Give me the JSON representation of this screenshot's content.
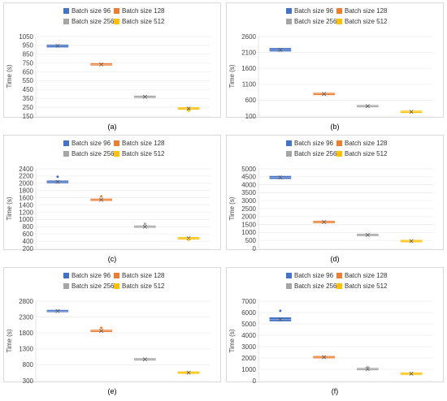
{
  "legend": {
    "colors": [
      "#4472c4",
      "#ed7d31",
      "#a5a5a5",
      "#ffc000"
    ]
  },
  "chart_data": [
    {
      "type": "box",
      "panel": "a",
      "caption": "(a)",
      "ylabel": "Time (s)",
      "ylim": [
        150,
        1050
      ],
      "yticks": [
        150,
        250,
        350,
        450,
        550,
        650,
        750,
        850,
        950,
        1050
      ],
      "legend": [
        "Batch size 96",
        "Batch size 128",
        "Batch size 256",
        "Batch size 512"
      ],
      "series": [
        {
          "name": "Batch size 96",
          "q1": 930,
          "q3": 955,
          "min": 925,
          "max": 960,
          "median": 945,
          "mean": 945,
          "outliers": []
        },
        {
          "name": "Batch size 128",
          "q1": 728,
          "q3": 742,
          "min": 725,
          "max": 745,
          "median": 735,
          "mean": 735,
          "outliers": []
        },
        {
          "name": "Batch size 256",
          "q1": 362,
          "q3": 374,
          "min": 360,
          "max": 377,
          "median": 368,
          "mean": 368,
          "outliers": []
        },
        {
          "name": "Batch size 512",
          "q1": 232,
          "q3": 240,
          "min": 230,
          "max": 243,
          "median": 235,
          "mean": 235,
          "outliers": [
            210
          ]
        }
      ]
    },
    {
      "type": "box",
      "panel": "b",
      "caption": "(b)",
      "ylabel": "Time (s)",
      "ylim": [
        100,
        2600
      ],
      "yticks": [
        100,
        600,
        1100,
        1600,
        2100,
        2600
      ],
      "legend": [
        "Batch size 96",
        "Batch size 128",
        "Batch size 256",
        "Batch size 512"
      ],
      "series": [
        {
          "name": "Batch size 96",
          "q1": 2140,
          "q3": 2230,
          "min": 2120,
          "max": 2250,
          "median": 2180,
          "mean": 2180,
          "outliers": []
        },
        {
          "name": "Batch size 128",
          "q1": 780,
          "q3": 810,
          "min": 770,
          "max": 820,
          "median": 795,
          "mean": 795,
          "outliers": []
        },
        {
          "name": "Batch size 256",
          "q1": 400,
          "q3": 425,
          "min": 395,
          "max": 430,
          "median": 412,
          "mean": 412,
          "outliers": []
        },
        {
          "name": "Batch size 512",
          "q1": 225,
          "q3": 245,
          "min": 220,
          "max": 250,
          "median": 235,
          "mean": 235,
          "outliers": []
        }
      ]
    },
    {
      "type": "box",
      "panel": "c",
      "caption": "(c)",
      "ylabel": "Time (s)",
      "ylim": [
        200,
        2400
      ],
      "yticks": [
        200,
        400,
        600,
        800,
        1000,
        1200,
        1400,
        1600,
        1800,
        2000,
        2200,
        2400
      ],
      "legend": [
        "Batch size 96",
        "Batch size 128",
        "Batch size 256",
        "Batch size 512"
      ],
      "series": [
        {
          "name": "Batch size 96",
          "q1": 2010,
          "q3": 2070,
          "min": 2000,
          "max": 2080,
          "median": 2040,
          "mean": 2040,
          "outliers": [
            2180
          ]
        },
        {
          "name": "Batch size 128",
          "q1": 1530,
          "q3": 1560,
          "min": 1520,
          "max": 1570,
          "median": 1545,
          "mean": 1545,
          "outliers": [
            1640
          ]
        },
        {
          "name": "Batch size 256",
          "q1": 790,
          "q3": 810,
          "min": 785,
          "max": 815,
          "median": 800,
          "mean": 800,
          "outliers": [
            880
          ]
        },
        {
          "name": "Batch size 512",
          "q1": 470,
          "q3": 490,
          "min": 465,
          "max": 495,
          "median": 480,
          "mean": 480,
          "outliers": [
            440
          ]
        }
      ]
    },
    {
      "type": "box",
      "panel": "d",
      "caption": "(d)",
      "ylabel": "Time (s)",
      "ylim": [
        0,
        5000
      ],
      "yticks": [
        0,
        500,
        1000,
        1500,
        2000,
        2500,
        3000,
        3500,
        4000,
        4500,
        5000
      ],
      "legend": [
        "Batch size 96",
        "Batch size 128",
        "Batch size 256",
        "Batch size 512"
      ],
      "series": [
        {
          "name": "Batch size 96",
          "q1": 4380,
          "q3": 4540,
          "min": 4350,
          "max": 4570,
          "median": 4460,
          "mean": 4460,
          "outliers": []
        },
        {
          "name": "Batch size 128",
          "q1": 1640,
          "q3": 1680,
          "min": 1630,
          "max": 1690,
          "median": 1660,
          "mean": 1660,
          "outliers": []
        },
        {
          "name": "Batch size 256",
          "q1": 830,
          "q3": 860,
          "min": 820,
          "max": 870,
          "median": 845,
          "mean": 845,
          "outliers": []
        },
        {
          "name": "Batch size 512",
          "q1": 440,
          "q3": 480,
          "min": 430,
          "max": 490,
          "median": 460,
          "mean": 460,
          "outliers": []
        }
      ]
    },
    {
      "type": "box",
      "panel": "e",
      "caption": "(e)",
      "ylabel": "Time (s)",
      "ylim": [
        300,
        2800
      ],
      "yticks": [
        300,
        800,
        1300,
        1800,
        2300,
        2800
      ],
      "legend": [
        "Batch size 96",
        "Batch size 128",
        "Batch size 256",
        "Batch size 512"
      ],
      "series": [
        {
          "name": "Batch size 96",
          "q1": 2475,
          "q3": 2505,
          "min": 2465,
          "max": 2515,
          "median": 2490,
          "mean": 2490,
          "outliers": []
        },
        {
          "name": "Batch size 128",
          "q1": 1850,
          "q3": 1880,
          "min": 1840,
          "max": 1890,
          "median": 1865,
          "mean": 1865,
          "outliers": [
            1960
          ]
        },
        {
          "name": "Batch size 256",
          "q1": 960,
          "q3": 985,
          "min": 955,
          "max": 990,
          "median": 972,
          "mean": 972,
          "outliers": []
        },
        {
          "name": "Batch size 512",
          "q1": 540,
          "q3": 565,
          "min": 535,
          "max": 570,
          "median": 552,
          "mean": 552,
          "outliers": []
        }
      ]
    },
    {
      "type": "box",
      "panel": "f",
      "caption": "(f)",
      "ylabel": "Time (s)",
      "ylim": [
        0,
        7000
      ],
      "yticks": [
        0,
        1000,
        2000,
        3000,
        4000,
        5000,
        6000,
        7000
      ],
      "legend": [
        "Batch size 96",
        "Batch size 128",
        "Batch size 256",
        "Batch size 512"
      ],
      "series": [
        {
          "name": "Batch size 96",
          "q1": 5250,
          "q3": 5550,
          "min": 5200,
          "max": 5600,
          "median": 5400,
          "mean": 5400,
          "outliers": [
            6150
          ]
        },
        {
          "name": "Batch size 128",
          "q1": 2040,
          "q3": 2100,
          "min": 2030,
          "max": 2110,
          "median": 2070,
          "mean": 2070,
          "outliers": []
        },
        {
          "name": "Batch size 256",
          "q1": 1000,
          "q3": 1050,
          "min": 990,
          "max": 1060,
          "median": 1025,
          "mean": 1025,
          "outliers": [
            1180
          ]
        },
        {
          "name": "Batch size 512",
          "q1": 590,
          "q3": 640,
          "min": 580,
          "max": 650,
          "median": 615,
          "mean": 615,
          "outliers": []
        }
      ]
    }
  ]
}
